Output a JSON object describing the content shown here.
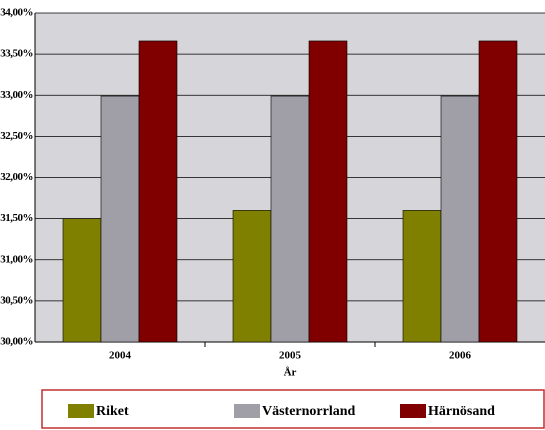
{
  "chart_data": {
    "type": "bar",
    "categories": [
      "2004",
      "2005",
      "2006"
    ],
    "x_label": "År",
    "series": [
      {
        "name": "Riket",
        "color": "#808000",
        "values": [
          31.5,
          31.6,
          31.6
        ]
      },
      {
        "name": "Västernorrland",
        "color": "#a09fa8",
        "values": [
          32.99,
          32.99,
          32.99
        ]
      },
      {
        "name": "Härnösand",
        "color": "#800000",
        "values": [
          33.66,
          33.66,
          33.66
        ]
      }
    ],
    "ylim": [
      30,
      34
    ],
    "yticks": [
      {
        "value": 30,
        "label": "30,00%"
      },
      {
        "value": 30.5,
        "label": "30,50%"
      },
      {
        "value": 31,
        "label": "31,00%"
      },
      {
        "value": 31.5,
        "label": "31,50%"
      },
      {
        "value": 32,
        "label": "32,00%"
      },
      {
        "value": 32.5,
        "label": "32,50%"
      },
      {
        "value": 33,
        "label": "33,00%"
      },
      {
        "value": 33.5,
        "label": "33,50%"
      },
      {
        "value": 34,
        "label": "34,00%"
      }
    ],
    "grid": true,
    "legend": "bottom"
  }
}
